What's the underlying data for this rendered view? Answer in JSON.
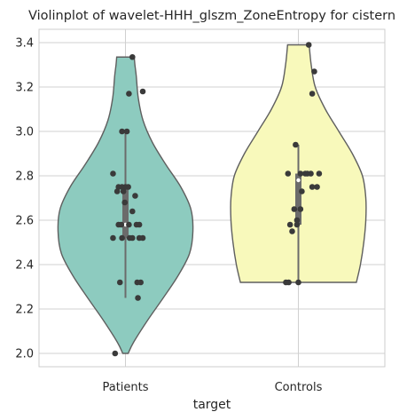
{
  "chart_data": {
    "type": "violin",
    "title": "Violinplot of wavelet-HHH_glszm_ZoneEntropy for cistern",
    "xlabel": "target",
    "ylabel": "",
    "ylim": [
      1.94,
      3.46
    ],
    "yticks": [
      2.0,
      2.2,
      2.4,
      2.6,
      2.8,
      3.0,
      3.2,
      3.4
    ],
    "ytick_labels": [
      "2.0",
      "2.2",
      "2.4",
      "2.6",
      "2.8",
      "3.0",
      "3.2",
      "3.4"
    ],
    "grid": true,
    "categories": [
      "Patients",
      "Controls"
    ],
    "colors": {
      "Patients": "#8dcbbf",
      "Controls": "#f8f9bb",
      "edge": "#5f5f5f",
      "points": "#3a3a3a",
      "grid": "#d0d0d0"
    },
    "series": [
      {
        "category": "Patients",
        "range": [
          2.0,
          3.335
        ],
        "whisker": [
          2.25,
          3.0
        ],
        "quartiles": [
          2.52,
          2.75
        ],
        "median": 2.58,
        "density": [
          [
            2.0,
            0.04
          ],
          [
            2.05,
            0.12
          ],
          [
            2.15,
            0.33
          ],
          [
            2.25,
            0.56
          ],
          [
            2.35,
            0.78
          ],
          [
            2.45,
            0.95
          ],
          [
            2.55,
            1.0
          ],
          [
            2.65,
            0.97
          ],
          [
            2.75,
            0.82
          ],
          [
            2.85,
            0.6
          ],
          [
            2.95,
            0.4
          ],
          [
            3.05,
            0.26
          ],
          [
            3.15,
            0.19
          ],
          [
            3.25,
            0.16
          ],
          [
            3.3,
            0.14
          ],
          [
            3.335,
            0.13
          ]
        ],
        "points": [
          [
            0.1,
            3.335
          ],
          [
            0.25,
            3.18
          ],
          [
            0.05,
            3.17
          ],
          [
            -0.05,
            3.0
          ],
          [
            0.02,
            3.0
          ],
          [
            -0.18,
            2.81
          ],
          [
            -0.1,
            2.75
          ],
          [
            -0.05,
            2.75
          ],
          [
            0.0,
            2.75
          ],
          [
            0.04,
            2.75
          ],
          [
            -0.12,
            2.73
          ],
          [
            -0.03,
            2.73
          ],
          [
            0.14,
            2.71
          ],
          [
            -0.01,
            2.68
          ],
          [
            0.1,
            2.64
          ],
          [
            -0.1,
            2.58
          ],
          [
            -0.06,
            2.58
          ],
          [
            0.05,
            2.58
          ],
          [
            0.16,
            2.58
          ],
          [
            0.2,
            2.58
          ],
          [
            -0.18,
            2.52
          ],
          [
            -0.05,
            2.52
          ],
          [
            0.06,
            2.52
          ],
          [
            0.1,
            2.52
          ],
          [
            0.2,
            2.52
          ],
          [
            0.25,
            2.52
          ],
          [
            -0.08,
            2.32
          ],
          [
            0.17,
            2.32
          ],
          [
            0.22,
            2.32
          ],
          [
            0.18,
            2.25
          ],
          [
            -0.15,
            2.0
          ]
        ]
      },
      {
        "category": "Controls",
        "range": [
          2.32,
          3.39
        ],
        "whisker": [
          2.32,
          2.94
        ],
        "quartiles": [
          2.58,
          2.81
        ],
        "median": 2.78,
        "density": [
          [
            2.32,
            0.86
          ],
          [
            2.4,
            0.92
          ],
          [
            2.5,
            0.97
          ],
          [
            2.6,
            1.0
          ],
          [
            2.7,
            1.0
          ],
          [
            2.8,
            0.95
          ],
          [
            2.9,
            0.8
          ],
          [
            3.0,
            0.6
          ],
          [
            3.1,
            0.4
          ],
          [
            3.2,
            0.25
          ],
          [
            3.3,
            0.19
          ],
          [
            3.39,
            0.16
          ]
        ],
        "points": [
          [
            0.15,
            3.39
          ],
          [
            0.23,
            3.27
          ],
          [
            0.2,
            3.17
          ],
          [
            -0.04,
            2.94
          ],
          [
            -0.15,
            2.81
          ],
          [
            0.1,
            2.81
          ],
          [
            0.13,
            2.81
          ],
          [
            0.18,
            2.81
          ],
          [
            0.3,
            2.81
          ],
          [
            0.03,
            2.81
          ],
          [
            0.2,
            2.75
          ],
          [
            0.27,
            2.75
          ],
          [
            0.05,
            2.73
          ],
          [
            -0.06,
            2.65
          ],
          [
            0.03,
            2.65
          ],
          [
            -0.02,
            2.6
          ],
          [
            -0.12,
            2.58
          ],
          [
            -0.02,
            2.58
          ],
          [
            -0.09,
            2.55
          ],
          [
            -0.18,
            2.32
          ],
          [
            -0.14,
            2.32
          ],
          [
            0.0,
            2.32
          ]
        ]
      }
    ]
  }
}
